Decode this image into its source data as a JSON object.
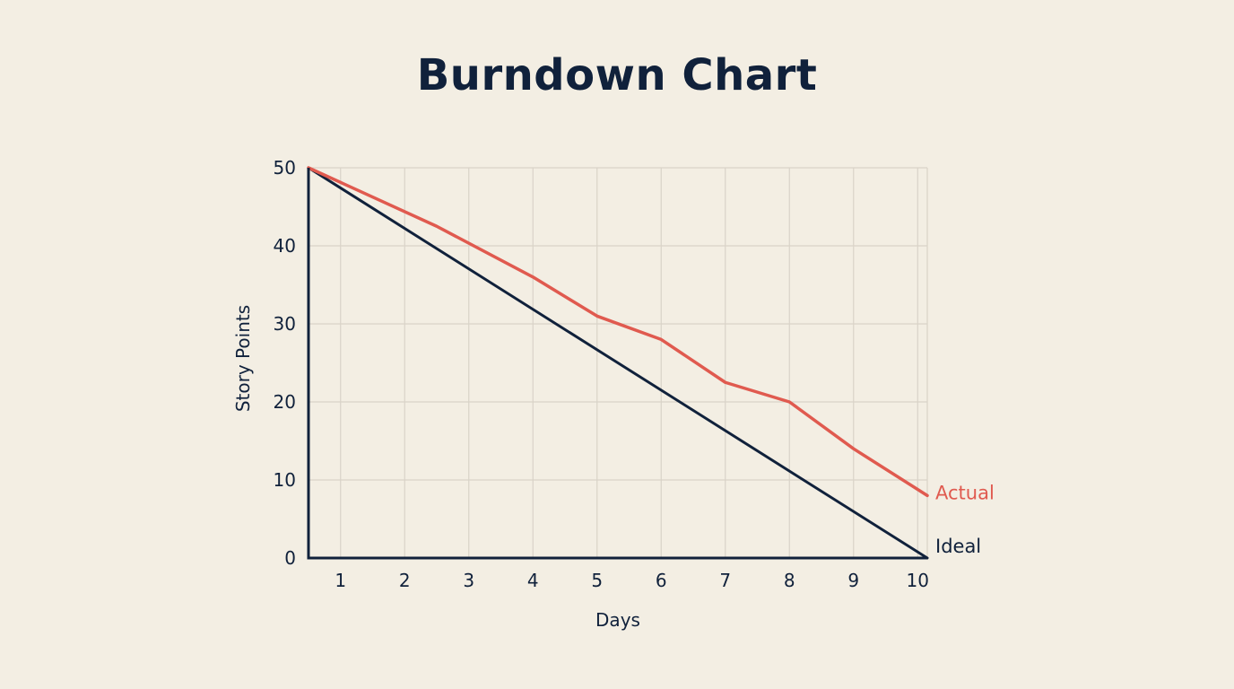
{
  "chart_data": {
    "type": "line",
    "title": "Burndown Chart",
    "xlabel": "Days",
    "ylabel": "Story Points",
    "xlim": [
      0.5,
      10.15
    ],
    "ylim": [
      0,
      50
    ],
    "xticks": [
      1,
      2,
      3,
      4,
      5,
      6,
      7,
      8,
      9,
      10
    ],
    "yticks": [
      0,
      10,
      20,
      30,
      40,
      50
    ],
    "grid": true,
    "series": [
      {
        "name": "Ideal",
        "color": "#10213b",
        "points": [
          [
            0.5,
            50
          ],
          [
            10.15,
            0
          ]
        ]
      },
      {
        "name": "Actual",
        "color": "#e05a4f",
        "points": [
          [
            0.5,
            50
          ],
          [
            2.5,
            42.5
          ],
          [
            4,
            36
          ],
          [
            5,
            31
          ],
          [
            6,
            28
          ],
          [
            7,
            22.5
          ],
          [
            8,
            20
          ],
          [
            9,
            14
          ],
          [
            10.15,
            8
          ]
        ]
      }
    ]
  }
}
